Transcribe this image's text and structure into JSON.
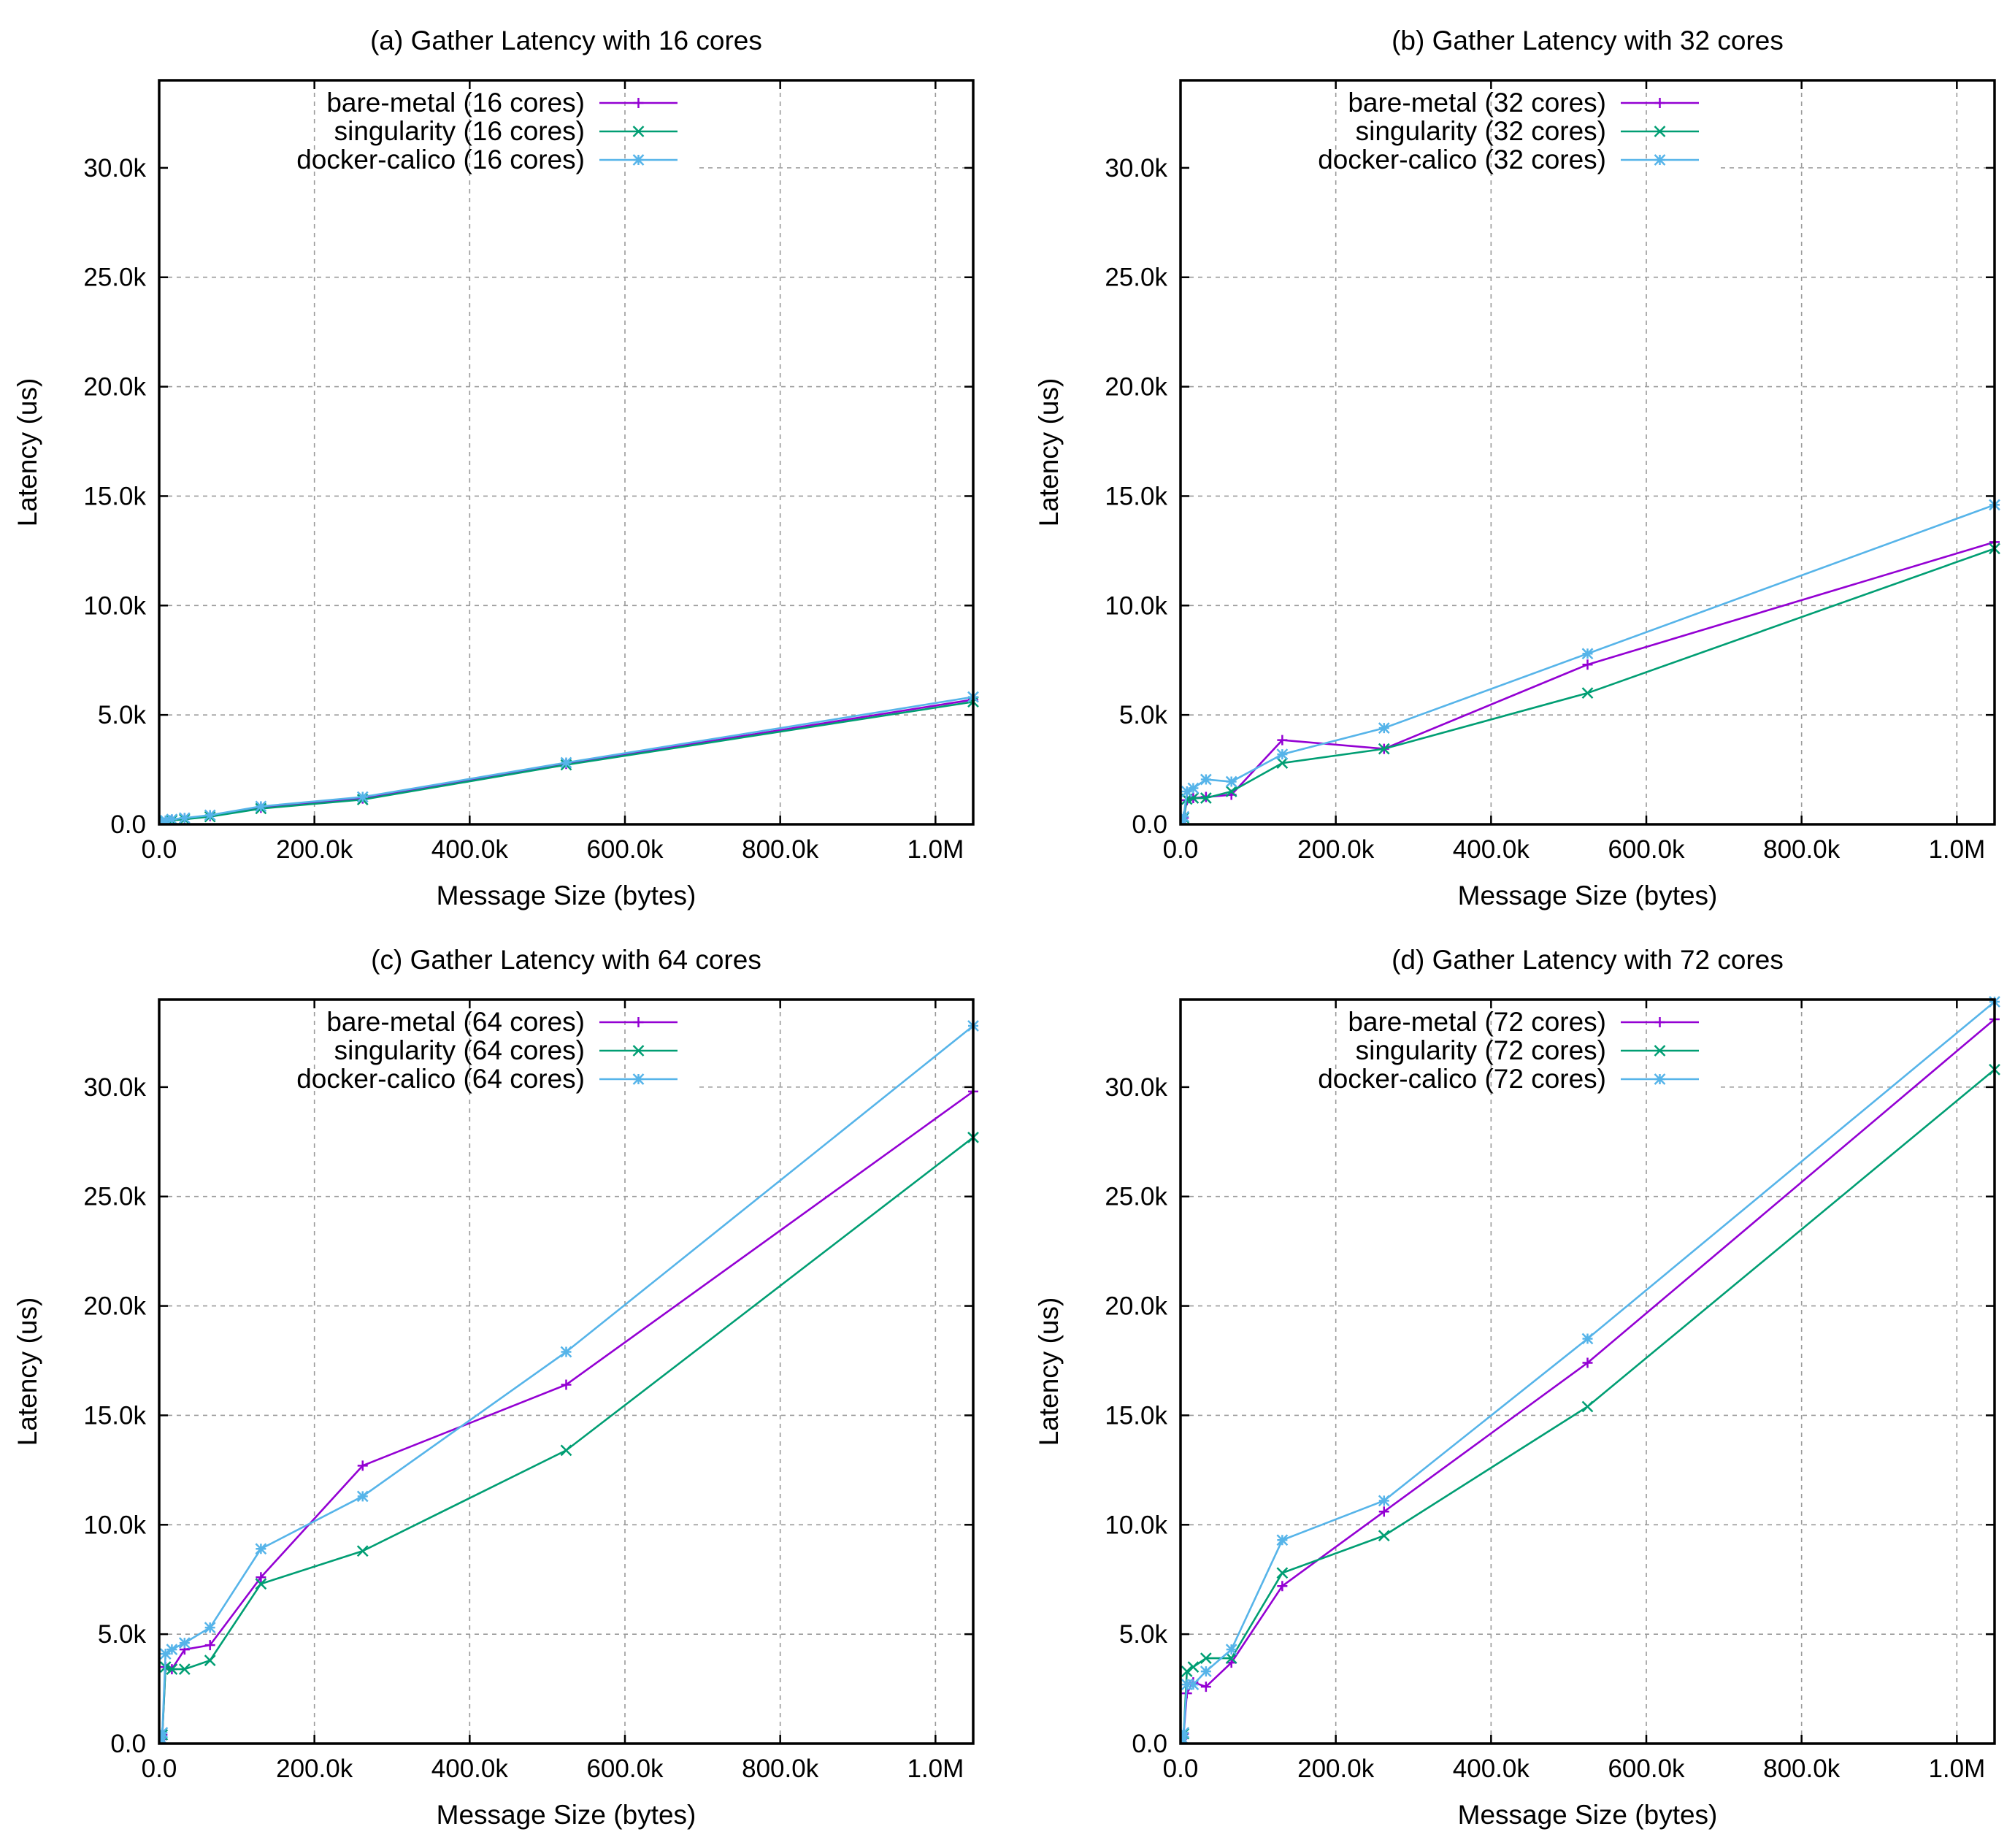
{
  "colors": {
    "bare_metal": "#9400d3",
    "singularity": "#009e73",
    "docker_calico": "#56b4e9"
  },
  "chart_data": [
    {
      "type": "line",
      "title": "(a) Gather Latency with 16 cores",
      "xlabel": "Message Size (bytes)",
      "ylabel": "Latency (us)",
      "xlim": [
        0,
        1048576
      ],
      "ylim": [
        0,
        34000
      ],
      "grid": true,
      "legend_position": "top-left",
      "xticks": [
        0,
        200000,
        400000,
        600000,
        800000,
        1000000
      ],
      "xtick_labels": [
        "0.0",
        "200.0k",
        "400.0k",
        "600.0k",
        "800.0k",
        "1.0M"
      ],
      "yticks": [
        0,
        5000,
        10000,
        15000,
        20000,
        25000,
        30000
      ],
      "ytick_labels": [
        "0.0",
        "5.0k",
        "10.0k",
        "15.0k",
        "20.0k",
        "25.0k",
        "30.0k"
      ],
      "x": [
        1,
        2,
        4,
        8,
        16,
        32,
        64,
        128,
        256,
        512,
        1024,
        2048,
        4096,
        8192,
        16384,
        32768,
        65536,
        131072,
        262144,
        524288,
        1048576
      ],
      "series": [
        {
          "name": "bare-metal (16 cores)",
          "marker": "plus",
          "color_key": "bare_metal",
          "values": [
            20,
            20,
            20,
            20,
            20,
            20,
            20,
            20,
            25,
            30,
            40,
            60,
            90,
            150,
            200,
            250,
            380,
            760,
            1180,
            2760,
            5700
          ]
        },
        {
          "name": "singularity (16 cores)",
          "marker": "cross",
          "color_key": "singularity",
          "values": [
            20,
            20,
            20,
            20,
            20,
            20,
            20,
            20,
            25,
            30,
            40,
            60,
            90,
            140,
            180,
            230,
            350,
            720,
            1130,
            2720,
            5600
          ]
        },
        {
          "name": "docker-calico (16 cores)",
          "marker": "star",
          "color_key": "docker_calico",
          "values": [
            30,
            30,
            30,
            30,
            30,
            30,
            30,
            30,
            35,
            40,
            50,
            70,
            100,
            170,
            230,
            290,
            420,
            820,
            1250,
            2820,
            5820
          ]
        }
      ]
    },
    {
      "type": "line",
      "title": "(b) Gather Latency with 32 cores",
      "xlabel": "Message Size (bytes)",
      "ylabel": "Latency (us)",
      "xlim": [
        0,
        1048576
      ],
      "ylim": [
        0,
        34000
      ],
      "grid": true,
      "legend_position": "top-left",
      "xticks": [
        0,
        200000,
        400000,
        600000,
        800000,
        1000000
      ],
      "xtick_labels": [
        "0.0",
        "200.0k",
        "400.0k",
        "600.0k",
        "800.0k",
        "1.0M"
      ],
      "yticks": [
        0,
        5000,
        10000,
        15000,
        20000,
        25000,
        30000
      ],
      "ytick_labels": [
        "0.0",
        "5.0k",
        "10.0k",
        "15.0k",
        "20.0k",
        "25.0k",
        "30.0k"
      ],
      "x": [
        1,
        2,
        4,
        8,
        16,
        32,
        64,
        128,
        256,
        512,
        1024,
        2048,
        4096,
        8192,
        16384,
        32768,
        65536,
        131072,
        262144,
        524288,
        1048576
      ],
      "series": [
        {
          "name": "bare-metal (32 cores)",
          "marker": "plus",
          "color_key": "bare_metal",
          "values": [
            50,
            50,
            50,
            50,
            50,
            50,
            50,
            60,
            70,
            90,
            120,
            180,
            300,
            1100,
            1200,
            1250,
            1350,
            3850,
            3450,
            7300,
            12900
          ]
        },
        {
          "name": "singularity (32 cores)",
          "marker": "cross",
          "color_key": "singularity",
          "values": [
            50,
            50,
            50,
            50,
            50,
            50,
            50,
            60,
            70,
            90,
            120,
            180,
            300,
            1150,
            1200,
            1200,
            1500,
            2800,
            3450,
            6000,
            12600
          ]
        },
        {
          "name": "docker-calico (32 cores)",
          "marker": "star",
          "color_key": "docker_calico",
          "values": [
            60,
            60,
            60,
            60,
            60,
            60,
            60,
            70,
            80,
            100,
            140,
            200,
            350,
            1500,
            1650,
            2050,
            1950,
            3200,
            4400,
            7800,
            14600
          ]
        }
      ]
    },
    {
      "type": "line",
      "title": "(c) Gather Latency with 64 cores",
      "xlabel": "Message Size (bytes)",
      "ylabel": "Latency (us)",
      "xlim": [
        0,
        1048576
      ],
      "ylim": [
        0,
        34000
      ],
      "grid": true,
      "legend_position": "top-left",
      "xticks": [
        0,
        200000,
        400000,
        600000,
        800000,
        1000000
      ],
      "xtick_labels": [
        "0.0",
        "200.0k",
        "400.0k",
        "600.0k",
        "800.0k",
        "1.0M"
      ],
      "yticks": [
        0,
        5000,
        10000,
        15000,
        20000,
        25000,
        30000
      ],
      "ytick_labels": [
        "0.0",
        "5.0k",
        "10.0k",
        "15.0k",
        "20.0k",
        "25.0k",
        "30.0k"
      ],
      "x": [
        1,
        2,
        4,
        8,
        16,
        32,
        64,
        128,
        256,
        512,
        1024,
        2048,
        4096,
        8192,
        16384,
        32768,
        65536,
        131072,
        262144,
        524288,
        1048576
      ],
      "series": [
        {
          "name": "bare-metal (64 cores)",
          "marker": "plus",
          "color_key": "bare_metal",
          "values": [
            100,
            100,
            100,
            100,
            100,
            100,
            100,
            100,
            110,
            120,
            150,
            200,
            400,
            3500,
            3400,
            4300,
            4500,
            7600,
            12700,
            16400,
            29800
          ]
        },
        {
          "name": "singularity (64 cores)",
          "marker": "cross",
          "color_key": "singularity",
          "values": [
            100,
            100,
            100,
            100,
            100,
            100,
            100,
            100,
            110,
            120,
            150,
            200,
            400,
            3500,
            3400,
            3400,
            3800,
            7300,
            8800,
            13400,
            27700
          ]
        },
        {
          "name": "docker-calico (64 cores)",
          "marker": "star",
          "color_key": "docker_calico",
          "values": [
            110,
            110,
            110,
            110,
            110,
            110,
            110,
            110,
            120,
            140,
            180,
            250,
            500,
            4100,
            4300,
            4600,
            5300,
            8900,
            11300,
            17900,
            32800
          ]
        }
      ]
    },
    {
      "type": "line",
      "title": "(d) Gather Latency with 72 cores",
      "xlabel": "Message Size (bytes)",
      "ylabel": "Latency (us)",
      "xlim": [
        0,
        1048576
      ],
      "ylim": [
        0,
        34000
      ],
      "grid": true,
      "legend_position": "top-left",
      "xticks": [
        0,
        200000,
        400000,
        600000,
        800000,
        1000000
      ],
      "xtick_labels": [
        "0.0",
        "200.0k",
        "400.0k",
        "600.0k",
        "800.0k",
        "1.0M"
      ],
      "yticks": [
        0,
        5000,
        10000,
        15000,
        20000,
        25000,
        30000
      ],
      "ytick_labels": [
        "0.0",
        "5.0k",
        "10.0k",
        "15.0k",
        "20.0k",
        "25.0k",
        "30.0k"
      ],
      "x": [
        1,
        2,
        4,
        8,
        16,
        32,
        64,
        128,
        256,
        512,
        1024,
        2048,
        4096,
        8192,
        16384,
        32768,
        65536,
        131072,
        262144,
        524288,
        1048576
      ],
      "series": [
        {
          "name": "bare-metal (72 cores)",
          "marker": "plus",
          "color_key": "bare_metal",
          "values": [
            100,
            100,
            100,
            100,
            100,
            100,
            100,
            100,
            110,
            130,
            160,
            220,
            450,
            2300,
            2800,
            2600,
            3700,
            7200,
            10600,
            17400,
            33100
          ]
        },
        {
          "name": "singularity (72 cores)",
          "marker": "cross",
          "color_key": "singularity",
          "values": [
            100,
            100,
            100,
            100,
            100,
            100,
            100,
            100,
            110,
            130,
            160,
            220,
            450,
            3300,
            3500,
            3900,
            3900,
            7800,
            9500,
            15400,
            30800
          ]
        },
        {
          "name": "docker-calico (72 cores)",
          "marker": "star",
          "color_key": "docker_calico",
          "values": [
            110,
            110,
            110,
            110,
            110,
            110,
            110,
            110,
            120,
            140,
            180,
            250,
            500,
            2700,
            2700,
            3300,
            4300,
            9300,
            11100,
            18500,
            33900
          ]
        }
      ]
    }
  ]
}
